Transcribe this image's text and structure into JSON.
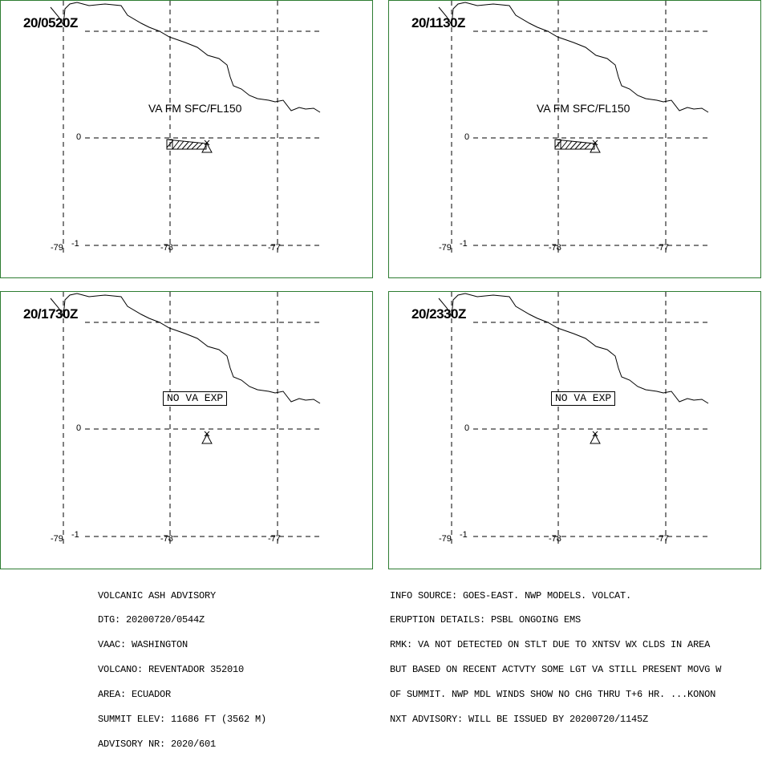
{
  "panels": [
    {
      "time": "20/0520Z",
      "label": "VA FM SFC/FL150",
      "ash": true
    },
    {
      "time": "20/1130Z",
      "label": "VA FM SFC/FL150",
      "ash": true
    },
    {
      "time": "20/1730Z",
      "label": "NO VA EXP",
      "ash": false
    },
    {
      "time": "20/2330Z",
      "label": "NO VA EXP",
      "ash": false
    }
  ],
  "axis": {
    "lat_zero": "0",
    "lat_minus1": "-1",
    "lon_79": "-79",
    "lon_78": "-78",
    "lon_77": "-77"
  },
  "advisory_left": [
    "VOLCANIC ASH ADVISORY",
    "DTG: 20200720/0544Z",
    "VAAC: WASHINGTON",
    "VOLCANO: REVENTADOR 352010",
    "AREA: ECUADOR",
    "SUMMIT ELEV: 11686 FT (3562 M)",
    "ADVISORY NR: 2020/601"
  ],
  "advisory_right": [
    "INFO SOURCE: GOES-EAST. NWP MODELS. VOLCAT.",
    "ERUPTION DETAILS: PSBL ONGOING EMS",
    "RMK: VA NOT DETECTED ON STLT DUE TO XNTSV WX CLDS IN AREA",
    "BUT BASED ON RECENT ACTVTY SOME LGT VA STILL PRESENT MOVG W",
    "OF SUMMIT. NWP MDL WINDS SHOW NO CHG THRU T+6 HR. ...KONON",
    "NXT ADVISORY: WILL BE ISSUED BY 20200720/1145Z"
  ],
  "colors": {
    "frame": "#2e7d32",
    "lines": "#000000"
  }
}
